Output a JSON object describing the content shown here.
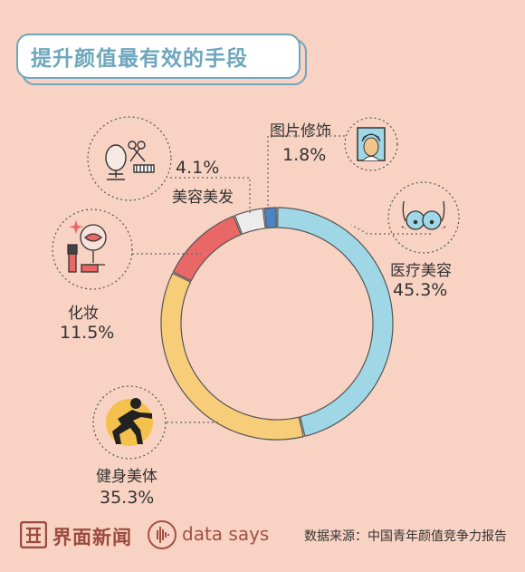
{
  "title": "提升颜值最有效的手段",
  "chart_data": {
    "type": "pie",
    "categories": [
      "医疗美容",
      "健身美体",
      "化妆",
      "美容美发",
      "图片修饰"
    ],
    "values": [
      45.3,
      35.3,
      11.5,
      4.1,
      1.8
    ],
    "value_labels": [
      "45.3%",
      "35.3%",
      "11.5%",
      "4.1%",
      "1.8%"
    ],
    "colors": [
      "#9fd7e6",
      "#f8cd7a",
      "#ea6767",
      "#ececec",
      "#4a84c5"
    ],
    "style": "donut",
    "start": "top, clockwise"
  },
  "icons": [
    "woman-face-mask-icon",
    "breast-icon",
    "mirror-scissors-comb-icon",
    "lipstick-mirror-icon",
    "squat-exercise-icon"
  ],
  "footer": {
    "brand_cn": "界面新闻",
    "brand_en": "data says",
    "source": "数据来源：中国青年颜值竞争力报告"
  }
}
